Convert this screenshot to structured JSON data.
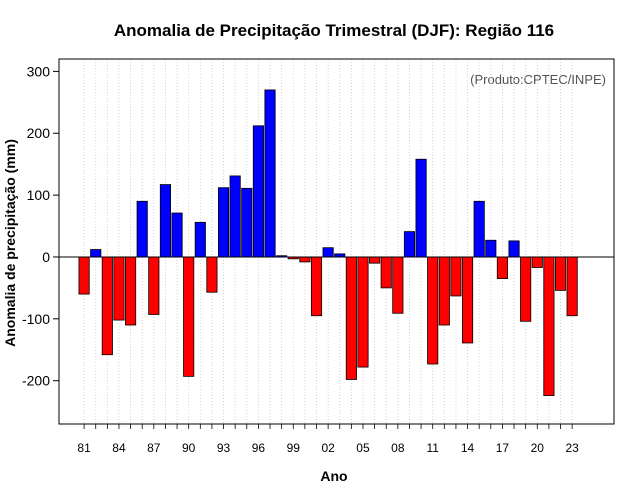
{
  "chart_data": {
    "type": "bar",
    "title": "Anomalia de Precipitação Trimestral (DJF): Região 116",
    "credit": "(Produto:CPTEC/INPE)",
    "xlabel": "Ano",
    "ylabel": "Anomalia de precipitação (mm)",
    "ylim": [
      -270,
      320
    ],
    "yticks": [
      -200,
      -100,
      0,
      100,
      200,
      300
    ],
    "xtick_labels": [
      "81",
      "84",
      "87",
      "90",
      "93",
      "96",
      "99",
      "02",
      "05",
      "08",
      "11",
      "14",
      "17",
      "20",
      "23"
    ],
    "positive_color": "#0000ff",
    "negative_color": "#ff0000",
    "years": [
      1981,
      1982,
      1983,
      1984,
      1985,
      1986,
      1987,
      1988,
      1989,
      1990,
      1991,
      1992,
      1993,
      1994,
      1995,
      1996,
      1997,
      1998,
      1999,
      2000,
      2001,
      2002,
      2003,
      2004,
      2005,
      2006,
      2007,
      2008,
      2009,
      2010,
      2011,
      2012,
      2013,
      2014,
      2015,
      2016,
      2017,
      2018,
      2019,
      2020,
      2021,
      2022,
      2023
    ],
    "values": [
      -60,
      12,
      -158,
      -102,
      -110,
      90,
      -93,
      117,
      71,
      -193,
      56,
      -57,
      112,
      131,
      111,
      212,
      270,
      2,
      -3,
      -8,
      -95,
      15,
      5,
      -198,
      -178,
      -10,
      -50,
      -91,
      41,
      158,
      -173,
      -110,
      -63,
      -139,
      90,
      27,
      -35,
      26,
      -104,
      -17,
      -224,
      -54,
      -95
    ]
  }
}
